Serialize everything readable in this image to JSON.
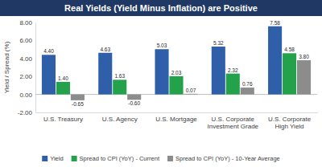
{
  "chart_data": {
    "type": "bar",
    "title": "Real Yields (Yield Minus Inflation) are Positive",
    "y_label": "Yield / Spread (%)",
    "categories": [
      "U.S. Treasury",
      "U.S. Agency",
      "U.S. Mortgage",
      "U.S. Corporate Investment Grade",
      "U.S. Corporate High Yield"
    ],
    "series": [
      {
        "name": "Yield",
        "color": "#2e5fa8",
        "values": [
          4.4,
          4.63,
          5.03,
          5.32,
          7.58
        ],
        "value_labels": [
          "4.40",
          "4.63",
          "5.03",
          "5.32",
          "7.58"
        ]
      },
      {
        "name": "Spread to CPI (YoY) - Current",
        "color": "#24a24b",
        "values": [
          1.4,
          1.63,
          2.03,
          2.32,
          4.58
        ],
        "value_labels": [
          "1.40",
          "1.63",
          "2.03",
          "2.32",
          "4.58"
        ]
      },
      {
        "name": "Spread to CPI (YoY) - 10-Year Average",
        "color": "#8c8c8c",
        "values": [
          -0.65,
          -0.6,
          0.07,
          0.76,
          3.8
        ],
        "value_labels": [
          "-0.65",
          "-0.60",
          "0.07",
          "0.76",
          "3.80"
        ]
      }
    ],
    "ylim": [
      -2,
      8
    ],
    "yticks": [
      {
        "value": -2,
        "label": "-2.00"
      },
      {
        "value": 0,
        "label": "0.00"
      },
      {
        "value": 2,
        "label": "2.00"
      },
      {
        "value": 4,
        "label": "4.00"
      },
      {
        "value": 6,
        "label": "6.00"
      },
      {
        "value": 8,
        "label": "8.00"
      }
    ],
    "grid": false,
    "data_labels": true,
    "legend": "bottom"
  }
}
